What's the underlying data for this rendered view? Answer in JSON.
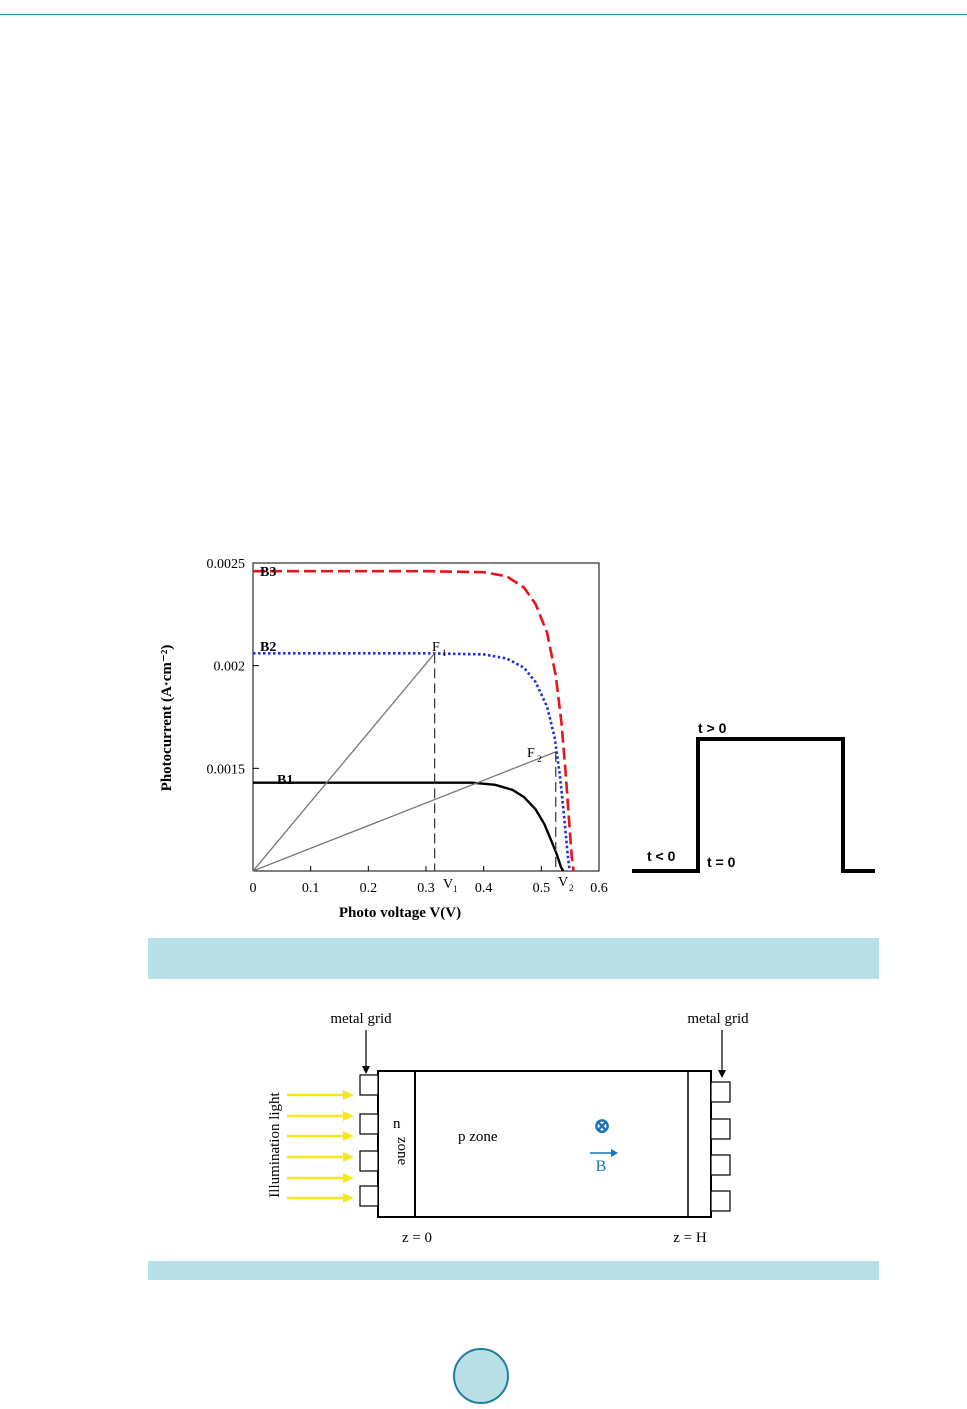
{
  "chart_data": {
    "type": "line",
    "title": "",
    "xlabel": "Photo voltage V(V)",
    "ylabel": "Photocurrent (A·cm⁻²)",
    "xlim": [
      0,
      0.6
    ],
    "ylim": [
      0.001,
      0.0025
    ],
    "xticks": [
      "0",
      "0.1",
      "0.2",
      "0.3",
      "0.4",
      "0.5",
      "0.6"
    ],
    "yticks": [
      "0.0015",
      "0.002",
      "0.0025"
    ],
    "series": [
      {
        "name": "B3",
        "color": "#e8141b",
        "style": "dashed",
        "points": [
          [
            0,
            0.00246
          ],
          [
            0.1,
            0.00246
          ],
          [
            0.2,
            0.00246
          ],
          [
            0.3,
            0.00246
          ],
          [
            0.4,
            0.002455
          ],
          [
            0.44,
            0.002435
          ],
          [
            0.47,
            0.00238
          ],
          [
            0.49,
            0.0023
          ],
          [
            0.51,
            0.00216
          ],
          [
            0.525,
            0.00195
          ],
          [
            0.535,
            0.00172
          ],
          [
            0.542,
            0.00148
          ],
          [
            0.548,
            0.00125
          ],
          [
            0.553,
            0.00106
          ],
          [
            0.556,
            0.001
          ]
        ]
      },
      {
        "name": "B2",
        "color": "#1f2ee0",
        "style": "dotted",
        "points": [
          [
            0,
            0.00206
          ],
          [
            0.1,
            0.00206
          ],
          [
            0.2,
            0.00206
          ],
          [
            0.3,
            0.00206
          ],
          [
            0.4,
            0.002055
          ],
          [
            0.44,
            0.002035
          ],
          [
            0.47,
            0.00199
          ],
          [
            0.49,
            0.00192
          ],
          [
            0.51,
            0.0018
          ],
          [
            0.523,
            0.00165
          ],
          [
            0.532,
            0.00147
          ],
          [
            0.539,
            0.00128
          ],
          [
            0.545,
            0.0011
          ],
          [
            0.549,
            0.001
          ]
        ]
      },
      {
        "name": "B1",
        "color": "#000000",
        "style": "solid",
        "points": [
          [
            0,
            0.00143
          ],
          [
            0.1,
            0.00143
          ],
          [
            0.2,
            0.00143
          ],
          [
            0.3,
            0.00143
          ],
          [
            0.38,
            0.00143
          ],
          [
            0.42,
            0.00142
          ],
          [
            0.45,
            0.001395
          ],
          [
            0.47,
            0.00136
          ],
          [
            0.49,
            0.0013
          ],
          [
            0.505,
            0.00123
          ],
          [
            0.517,
            0.00115
          ],
          [
            0.527,
            0.00108
          ],
          [
            0.534,
            0.00102
          ],
          [
            0.538,
            0.001
          ]
        ]
      }
    ],
    "annotations": [
      "F",
      "1",
      "F",
      "2",
      "V",
      "1",
      "V",
      "2"
    ],
    "points_marked": [
      {
        "label": "F1",
        "x": 0.315,
        "y": 0.00206
      },
      {
        "label": "F2",
        "x": 0.525,
        "y": 0.00158
      }
    ]
  },
  "pulse": {
    "labels": [
      "t > 0",
      "t < 0",
      "t = 0"
    ]
  },
  "diagram": {
    "metal_grid_left": "metal grid",
    "metal_grid_right": "metal grid",
    "illumination": "Illumination light",
    "n": "n",
    "zone": "zone",
    "p_zone": "p zone",
    "field_symbol": "⊗",
    "field_label": "B",
    "z0": "z = 0",
    "zH": "z = H",
    "arrow_color": "#f5e81c",
    "field_color": "#1a74b5"
  }
}
